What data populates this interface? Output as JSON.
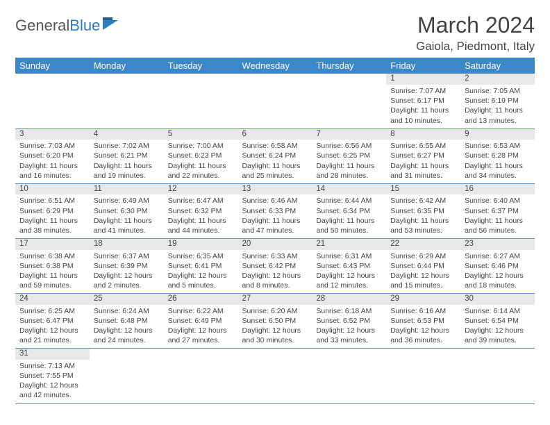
{
  "brand": {
    "part1": "General",
    "part2": "Blue"
  },
  "title": "March 2024",
  "location": "Gaiola, Piedmont, Italy",
  "colors": {
    "header_bg": "#3b87c8",
    "header_text": "#ffffff",
    "daynum_bg": "#e8e8e8",
    "row_border": "#5a96c9",
    "text": "#444444",
    "logo_gray": "#555555",
    "logo_blue": "#2f7bbf"
  },
  "weekdays": [
    "Sunday",
    "Monday",
    "Tuesday",
    "Wednesday",
    "Thursday",
    "Friday",
    "Saturday"
  ],
  "weeks": [
    [
      null,
      null,
      null,
      null,
      null,
      {
        "n": "1",
        "sr": "Sunrise: 7:07 AM",
        "ss": "Sunset: 6:17 PM",
        "d1": "Daylight: 11 hours",
        "d2": "and 10 minutes."
      },
      {
        "n": "2",
        "sr": "Sunrise: 7:05 AM",
        "ss": "Sunset: 6:19 PM",
        "d1": "Daylight: 11 hours",
        "d2": "and 13 minutes."
      }
    ],
    [
      {
        "n": "3",
        "sr": "Sunrise: 7:03 AM",
        "ss": "Sunset: 6:20 PM",
        "d1": "Daylight: 11 hours",
        "d2": "and 16 minutes."
      },
      {
        "n": "4",
        "sr": "Sunrise: 7:02 AM",
        "ss": "Sunset: 6:21 PM",
        "d1": "Daylight: 11 hours",
        "d2": "and 19 minutes."
      },
      {
        "n": "5",
        "sr": "Sunrise: 7:00 AM",
        "ss": "Sunset: 6:23 PM",
        "d1": "Daylight: 11 hours",
        "d2": "and 22 minutes."
      },
      {
        "n": "6",
        "sr": "Sunrise: 6:58 AM",
        "ss": "Sunset: 6:24 PM",
        "d1": "Daylight: 11 hours",
        "d2": "and 25 minutes."
      },
      {
        "n": "7",
        "sr": "Sunrise: 6:56 AM",
        "ss": "Sunset: 6:25 PM",
        "d1": "Daylight: 11 hours",
        "d2": "and 28 minutes."
      },
      {
        "n": "8",
        "sr": "Sunrise: 6:55 AM",
        "ss": "Sunset: 6:27 PM",
        "d1": "Daylight: 11 hours",
        "d2": "and 31 minutes."
      },
      {
        "n": "9",
        "sr": "Sunrise: 6:53 AM",
        "ss": "Sunset: 6:28 PM",
        "d1": "Daylight: 11 hours",
        "d2": "and 34 minutes."
      }
    ],
    [
      {
        "n": "10",
        "sr": "Sunrise: 6:51 AM",
        "ss": "Sunset: 6:29 PM",
        "d1": "Daylight: 11 hours",
        "d2": "and 38 minutes."
      },
      {
        "n": "11",
        "sr": "Sunrise: 6:49 AM",
        "ss": "Sunset: 6:30 PM",
        "d1": "Daylight: 11 hours",
        "d2": "and 41 minutes."
      },
      {
        "n": "12",
        "sr": "Sunrise: 6:47 AM",
        "ss": "Sunset: 6:32 PM",
        "d1": "Daylight: 11 hours",
        "d2": "and 44 minutes."
      },
      {
        "n": "13",
        "sr": "Sunrise: 6:46 AM",
        "ss": "Sunset: 6:33 PM",
        "d1": "Daylight: 11 hours",
        "d2": "and 47 minutes."
      },
      {
        "n": "14",
        "sr": "Sunrise: 6:44 AM",
        "ss": "Sunset: 6:34 PM",
        "d1": "Daylight: 11 hours",
        "d2": "and 50 minutes."
      },
      {
        "n": "15",
        "sr": "Sunrise: 6:42 AM",
        "ss": "Sunset: 6:35 PM",
        "d1": "Daylight: 11 hours",
        "d2": "and 53 minutes."
      },
      {
        "n": "16",
        "sr": "Sunrise: 6:40 AM",
        "ss": "Sunset: 6:37 PM",
        "d1": "Daylight: 11 hours",
        "d2": "and 56 minutes."
      }
    ],
    [
      {
        "n": "17",
        "sr": "Sunrise: 6:38 AM",
        "ss": "Sunset: 6:38 PM",
        "d1": "Daylight: 11 hours",
        "d2": "and 59 minutes."
      },
      {
        "n": "18",
        "sr": "Sunrise: 6:37 AM",
        "ss": "Sunset: 6:39 PM",
        "d1": "Daylight: 12 hours",
        "d2": "and 2 minutes."
      },
      {
        "n": "19",
        "sr": "Sunrise: 6:35 AM",
        "ss": "Sunset: 6:41 PM",
        "d1": "Daylight: 12 hours",
        "d2": "and 5 minutes."
      },
      {
        "n": "20",
        "sr": "Sunrise: 6:33 AM",
        "ss": "Sunset: 6:42 PM",
        "d1": "Daylight: 12 hours",
        "d2": "and 8 minutes."
      },
      {
        "n": "21",
        "sr": "Sunrise: 6:31 AM",
        "ss": "Sunset: 6:43 PM",
        "d1": "Daylight: 12 hours",
        "d2": "and 12 minutes."
      },
      {
        "n": "22",
        "sr": "Sunrise: 6:29 AM",
        "ss": "Sunset: 6:44 PM",
        "d1": "Daylight: 12 hours",
        "d2": "and 15 minutes."
      },
      {
        "n": "23",
        "sr": "Sunrise: 6:27 AM",
        "ss": "Sunset: 6:46 PM",
        "d1": "Daylight: 12 hours",
        "d2": "and 18 minutes."
      }
    ],
    [
      {
        "n": "24",
        "sr": "Sunrise: 6:25 AM",
        "ss": "Sunset: 6:47 PM",
        "d1": "Daylight: 12 hours",
        "d2": "and 21 minutes."
      },
      {
        "n": "25",
        "sr": "Sunrise: 6:24 AM",
        "ss": "Sunset: 6:48 PM",
        "d1": "Daylight: 12 hours",
        "d2": "and 24 minutes."
      },
      {
        "n": "26",
        "sr": "Sunrise: 6:22 AM",
        "ss": "Sunset: 6:49 PM",
        "d1": "Daylight: 12 hours",
        "d2": "and 27 minutes."
      },
      {
        "n": "27",
        "sr": "Sunrise: 6:20 AM",
        "ss": "Sunset: 6:50 PM",
        "d1": "Daylight: 12 hours",
        "d2": "and 30 minutes."
      },
      {
        "n": "28",
        "sr": "Sunrise: 6:18 AM",
        "ss": "Sunset: 6:52 PM",
        "d1": "Daylight: 12 hours",
        "d2": "and 33 minutes."
      },
      {
        "n": "29",
        "sr": "Sunrise: 6:16 AM",
        "ss": "Sunset: 6:53 PM",
        "d1": "Daylight: 12 hours",
        "d2": "and 36 minutes."
      },
      {
        "n": "30",
        "sr": "Sunrise: 6:14 AM",
        "ss": "Sunset: 6:54 PM",
        "d1": "Daylight: 12 hours",
        "d2": "and 39 minutes."
      }
    ],
    [
      {
        "n": "31",
        "sr": "Sunrise: 7:13 AM",
        "ss": "Sunset: 7:55 PM",
        "d1": "Daylight: 12 hours",
        "d2": "and 42 minutes."
      },
      null,
      null,
      null,
      null,
      null,
      null
    ]
  ]
}
